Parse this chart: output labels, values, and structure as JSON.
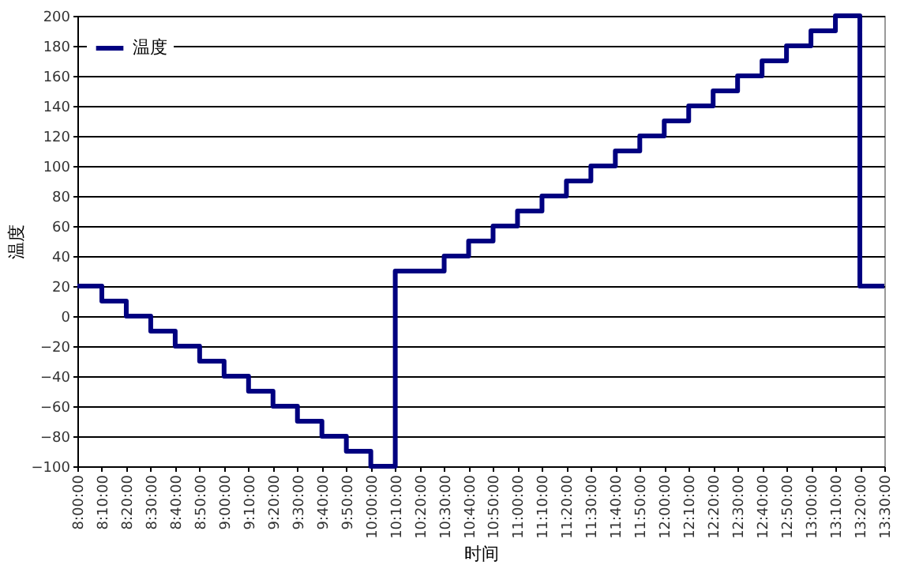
{
  "chart_data": {
    "type": "step",
    "xlabel": "时间",
    "ylabel": "温度",
    "x": [
      8.0,
      8.1667,
      8.3333,
      8.5,
      8.6667,
      8.8333,
      9.0,
      9.1667,
      9.3333,
      9.5,
      9.6667,
      9.8333,
      10.0,
      10.1667,
      10.3333,
      10.5,
      10.6667,
      10.8333,
      11.0,
      11.1667,
      11.3333,
      11.5,
      11.6667,
      11.8333,
      12.0,
      12.1667,
      12.3333,
      12.5,
      12.6667,
      12.8333,
      13.0,
      13.1667,
      13.3333,
      13.5
    ],
    "series": [
      {
        "name": "温度",
        "color": "#000080",
        "values": [
          20,
          10,
          0,
          -10,
          -20,
          -30,
          -40,
          -50,
          -60,
          -70,
          -80,
          -90,
          -100,
          30,
          30,
          40,
          50,
          60,
          70,
          80,
          90,
          100,
          110,
          120,
          130,
          140,
          150,
          160,
          170,
          180,
          190,
          200,
          20,
          20
        ]
      }
    ],
    "xlim": [
      8.0,
      13.5
    ],
    "xticks": [
      {
        "value": 8.0,
        "label": "8:00:00"
      },
      {
        "value": 8.1667,
        "label": "8:10:00"
      },
      {
        "value": 8.3333,
        "label": "8:20:00"
      },
      {
        "value": 8.5,
        "label": "8:30:00"
      },
      {
        "value": 8.6667,
        "label": "8:40:00"
      },
      {
        "value": 8.8333,
        "label": "8:50:00"
      },
      {
        "value": 9.0,
        "label": "9:00:00"
      },
      {
        "value": 9.1667,
        "label": "9:10:00"
      },
      {
        "value": 9.3333,
        "label": "9:20:00"
      },
      {
        "value": 9.5,
        "label": "9:30:00"
      },
      {
        "value": 9.6667,
        "label": "9:40:00"
      },
      {
        "value": 9.8333,
        "label": "9:50:00"
      },
      {
        "value": 10.0,
        "label": "10:00:00"
      },
      {
        "value": 10.1667,
        "label": "10:10:00"
      },
      {
        "value": 10.3333,
        "label": "10:20:00"
      },
      {
        "value": 10.5,
        "label": "10:30:00"
      },
      {
        "value": 10.6667,
        "label": "10:40:00"
      },
      {
        "value": 10.8333,
        "label": "10:50:00"
      },
      {
        "value": 11.0,
        "label": "11:00:00"
      },
      {
        "value": 11.1667,
        "label": "11:10:00"
      },
      {
        "value": 11.3333,
        "label": "11:20:00"
      },
      {
        "value": 11.5,
        "label": "11:30:00"
      },
      {
        "value": 11.6667,
        "label": "11:40:00"
      },
      {
        "value": 11.8333,
        "label": "11:50:00"
      },
      {
        "value": 12.0,
        "label": "12:00:00"
      },
      {
        "value": 12.1667,
        "label": "12:10:00"
      },
      {
        "value": 12.3333,
        "label": "12:20:00"
      },
      {
        "value": 12.5,
        "label": "12:30:00"
      },
      {
        "value": 12.6667,
        "label": "12:40:00"
      },
      {
        "value": 12.8333,
        "label": "12:50:00"
      },
      {
        "value": 13.0,
        "label": "13:00:00"
      },
      {
        "value": 13.1667,
        "label": "13:10:00"
      },
      {
        "value": 13.3333,
        "label": "13:20:00"
      },
      {
        "value": 13.5,
        "label": "13:30:00"
      }
    ],
    "ylim": [
      -100,
      200
    ],
    "yticks": [
      -100,
      -80,
      -60,
      -40,
      -20,
      0,
      20,
      40,
      60,
      80,
      100,
      120,
      140,
      160,
      180,
      200
    ],
    "grid": "y",
    "legend": "top left"
  }
}
